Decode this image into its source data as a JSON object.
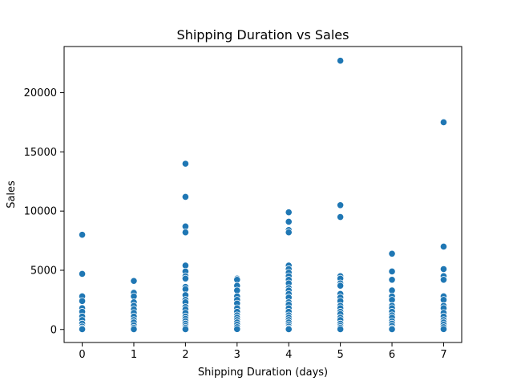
{
  "chart_data": {
    "type": "scatter",
    "title": "Shipping Duration vs Sales",
    "xlabel": "Shipping Duration (days)",
    "ylabel": "Sales",
    "xlim": [
      -0.35,
      7.35
    ],
    "ylim": [
      -1100,
      23900
    ],
    "x_ticks": [
      0,
      1,
      2,
      3,
      4,
      5,
      6,
      7
    ],
    "x_tick_labels": [
      "0",
      "1",
      "2",
      "3",
      "4",
      "5",
      "6",
      "7"
    ],
    "y_ticks": [
      0,
      5000,
      10000,
      15000,
      20000
    ],
    "y_tick_labels": [
      "0",
      "5000",
      "10000",
      "15000",
      "20000"
    ],
    "grid": false,
    "legend": "none",
    "series": [
      {
        "color": "#1f77b4",
        "points": [
          [
            0,
            8000
          ],
          [
            0,
            4700
          ],
          [
            0,
            2800
          ],
          [
            0,
            2400
          ],
          [
            0,
            1800
          ],
          [
            0,
            1500
          ],
          [
            0,
            1100
          ],
          [
            0,
            800
          ],
          [
            0,
            500
          ],
          [
            0,
            250
          ],
          [
            0,
            100
          ],
          [
            0,
            20
          ],
          [
            1,
            4100
          ],
          [
            1,
            3100
          ],
          [
            1,
            2800
          ],
          [
            1,
            2300
          ],
          [
            1,
            2000
          ],
          [
            1,
            1700
          ],
          [
            1,
            1400
          ],
          [
            1,
            1100
          ],
          [
            1,
            800
          ],
          [
            1,
            600
          ],
          [
            1,
            350
          ],
          [
            1,
            150
          ],
          [
            1,
            20
          ],
          [
            2,
            14000
          ],
          [
            2,
            11200
          ],
          [
            2,
            8700
          ],
          [
            2,
            8200
          ],
          [
            2,
            5400
          ],
          [
            2,
            4900
          ],
          [
            2,
            4500
          ],
          [
            2,
            4300
          ],
          [
            2,
            3600
          ],
          [
            2,
            3400
          ],
          [
            2,
            2900
          ],
          [
            2,
            2500
          ],
          [
            2,
            2300
          ],
          [
            2,
            1900
          ],
          [
            2,
            1700
          ],
          [
            2,
            1400
          ],
          [
            2,
            1100
          ],
          [
            2,
            900
          ],
          [
            2,
            700
          ],
          [
            2,
            500
          ],
          [
            2,
            300
          ],
          [
            2,
            150
          ],
          [
            2,
            20
          ],
          [
            3,
            4300
          ],
          [
            3,
            4200
          ],
          [
            3,
            3700
          ],
          [
            3,
            3300
          ],
          [
            3,
            2800
          ],
          [
            3,
            2500
          ],
          [
            3,
            2200
          ],
          [
            3,
            1800
          ],
          [
            3,
            1500
          ],
          [
            3,
            1200
          ],
          [
            3,
            1000
          ],
          [
            3,
            800
          ],
          [
            3,
            600
          ],
          [
            3,
            400
          ],
          [
            3,
            200
          ],
          [
            3,
            30
          ],
          [
            4,
            9900
          ],
          [
            4,
            9100
          ],
          [
            4,
            8400
          ],
          [
            4,
            8200
          ],
          [
            4,
            5400
          ],
          [
            4,
            5100
          ],
          [
            4,
            4800
          ],
          [
            4,
            4500
          ],
          [
            4,
            4200
          ],
          [
            4,
            3900
          ],
          [
            4,
            3500
          ],
          [
            4,
            3300
          ],
          [
            4,
            3000
          ],
          [
            4,
            2700
          ],
          [
            4,
            2300
          ],
          [
            4,
            2100
          ],
          [
            4,
            1800
          ],
          [
            4,
            1500
          ],
          [
            4,
            1200
          ],
          [
            4,
            1000
          ],
          [
            4,
            800
          ],
          [
            4,
            600
          ],
          [
            4,
            400
          ],
          [
            4,
            250
          ],
          [
            4,
            100
          ],
          [
            4,
            20
          ],
          [
            5,
            22700
          ],
          [
            5,
            10500
          ],
          [
            5,
            9500
          ],
          [
            5,
            4500
          ],
          [
            5,
            4300
          ],
          [
            5,
            3900
          ],
          [
            5,
            3700
          ],
          [
            5,
            3000
          ],
          [
            5,
            2700
          ],
          [
            5,
            2400
          ],
          [
            5,
            2000
          ],
          [
            5,
            1800
          ],
          [
            5,
            1500
          ],
          [
            5,
            1300
          ],
          [
            5,
            1000
          ],
          [
            5,
            800
          ],
          [
            5,
            500
          ],
          [
            5,
            300
          ],
          [
            5,
            150
          ],
          [
            5,
            20
          ],
          [
            6,
            6400
          ],
          [
            6,
            4900
          ],
          [
            6,
            4200
          ],
          [
            6,
            3300
          ],
          [
            6,
            2800
          ],
          [
            6,
            2500
          ],
          [
            6,
            2000
          ],
          [
            6,
            1800
          ],
          [
            6,
            1500
          ],
          [
            6,
            1200
          ],
          [
            6,
            1000
          ],
          [
            6,
            700
          ],
          [
            6,
            500
          ],
          [
            6,
            300
          ],
          [
            6,
            100
          ],
          [
            6,
            20
          ],
          [
            7,
            17500
          ],
          [
            7,
            7000
          ],
          [
            7,
            5100
          ],
          [
            7,
            4500
          ],
          [
            7,
            4200
          ],
          [
            7,
            2800
          ],
          [
            7,
            2500
          ],
          [
            7,
            2000
          ],
          [
            7,
            1800
          ],
          [
            7,
            1400
          ],
          [
            7,
            1100
          ],
          [
            7,
            800
          ],
          [
            7,
            600
          ],
          [
            7,
            400
          ],
          [
            7,
            200
          ],
          [
            7,
            30
          ]
        ]
      }
    ]
  }
}
